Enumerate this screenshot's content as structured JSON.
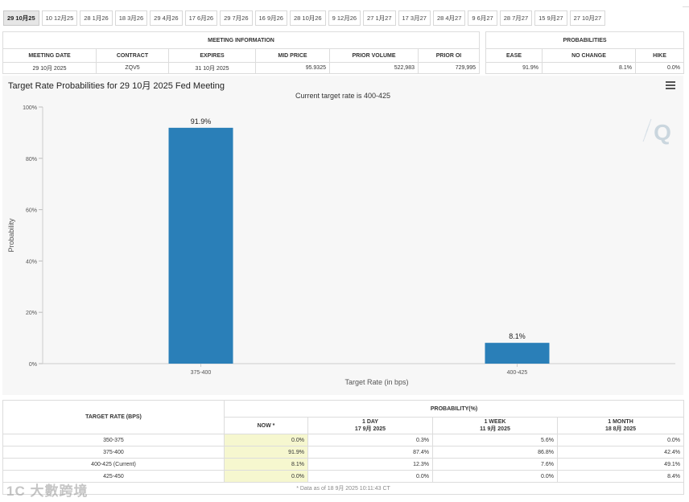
{
  "tabs": [
    "29 10月25",
    "10 12月25",
    "28 1月26",
    "18 3月26",
    "29 4月26",
    "17 6月26",
    "29 7月26",
    "16 9月26",
    "28 10月26",
    "9 12月26",
    "27 1月27",
    "17 3月27",
    "28 4月27",
    "9 6月27",
    "28 7月27",
    "15 9月27",
    "27 10月27"
  ],
  "active_tab": 0,
  "meeting_info": {
    "title": "MEETING INFORMATION",
    "headers": [
      "MEETING DATE",
      "CONTRACT",
      "EXPIRES",
      "MID PRICE",
      "PRIOR VOLUME",
      "PRIOR OI"
    ],
    "row": [
      "29 10月 2025",
      "ZQV5",
      "31 10月 2025",
      "95.9325",
      "522,983",
      "729,995"
    ]
  },
  "probabilities": {
    "title": "PROBABILITIES",
    "headers": [
      "EASE",
      "NO CHANGE",
      "HIKE"
    ],
    "row": [
      "91.9%",
      "8.1%",
      "0.0%"
    ]
  },
  "chart": {
    "title": "Target Rate Probabilities for 29 10月 2025 Fed Meeting",
    "subtitle": "Current target rate is 400-425"
  },
  "chart_data": {
    "type": "bar",
    "categories": [
      "375-400",
      "400-425"
    ],
    "values": [
      91.9,
      8.1
    ],
    "value_labels": [
      "91.9%",
      "8.1%"
    ],
    "title": "Target Rate Probabilities for 29 10月 2025 Fed Meeting",
    "subtitle": "Current target rate is 400-425",
    "xlabel": "Target Rate (in bps)",
    "ylabel": "Probability",
    "ylim": [
      0,
      100
    ],
    "yticks": [
      "0%",
      "20%",
      "40%",
      "60%",
      "80%",
      "100%"
    ],
    "bar_color": "#2a7fb8",
    "grid": false
  },
  "rate_table": {
    "col_target": "TARGET RATE (BPS)",
    "col_group": "PROBABILITY(%)",
    "cols": [
      {
        "label": "NOW *",
        "date": ""
      },
      {
        "label": "1 DAY",
        "date": "17 9月 2025"
      },
      {
        "label": "1 WEEK",
        "date": "11 9月 2025"
      },
      {
        "label": "1 MONTH",
        "date": "18 8月 2025"
      }
    ],
    "rows": [
      {
        "rate": "350-375",
        "values": [
          "0.0%",
          "0.3%",
          "5.6%",
          "0.0%"
        ]
      },
      {
        "rate": "375-400",
        "values": [
          "91.9%",
          "87.4%",
          "86.8%",
          "42.4%"
        ]
      },
      {
        "rate": "400-425 (Current)",
        "values": [
          "8.1%",
          "12.3%",
          "7.6%",
          "49.1%"
        ]
      },
      {
        "rate": "425-450",
        "values": [
          "0.0%",
          "0.0%",
          "0.0%",
          "8.4%"
        ]
      }
    ],
    "footnote": "* Data as of 18 9月 2025 10:11:43 CT"
  },
  "colors": {
    "now_column": "#f6f7cf",
    "accent": "#2a7fb8"
  },
  "icons": {
    "chart_menu": "hamburger-menu-icon",
    "logo": "quikstrike-q-logo-icon"
  },
  "watermark": "1C 大數跨境"
}
